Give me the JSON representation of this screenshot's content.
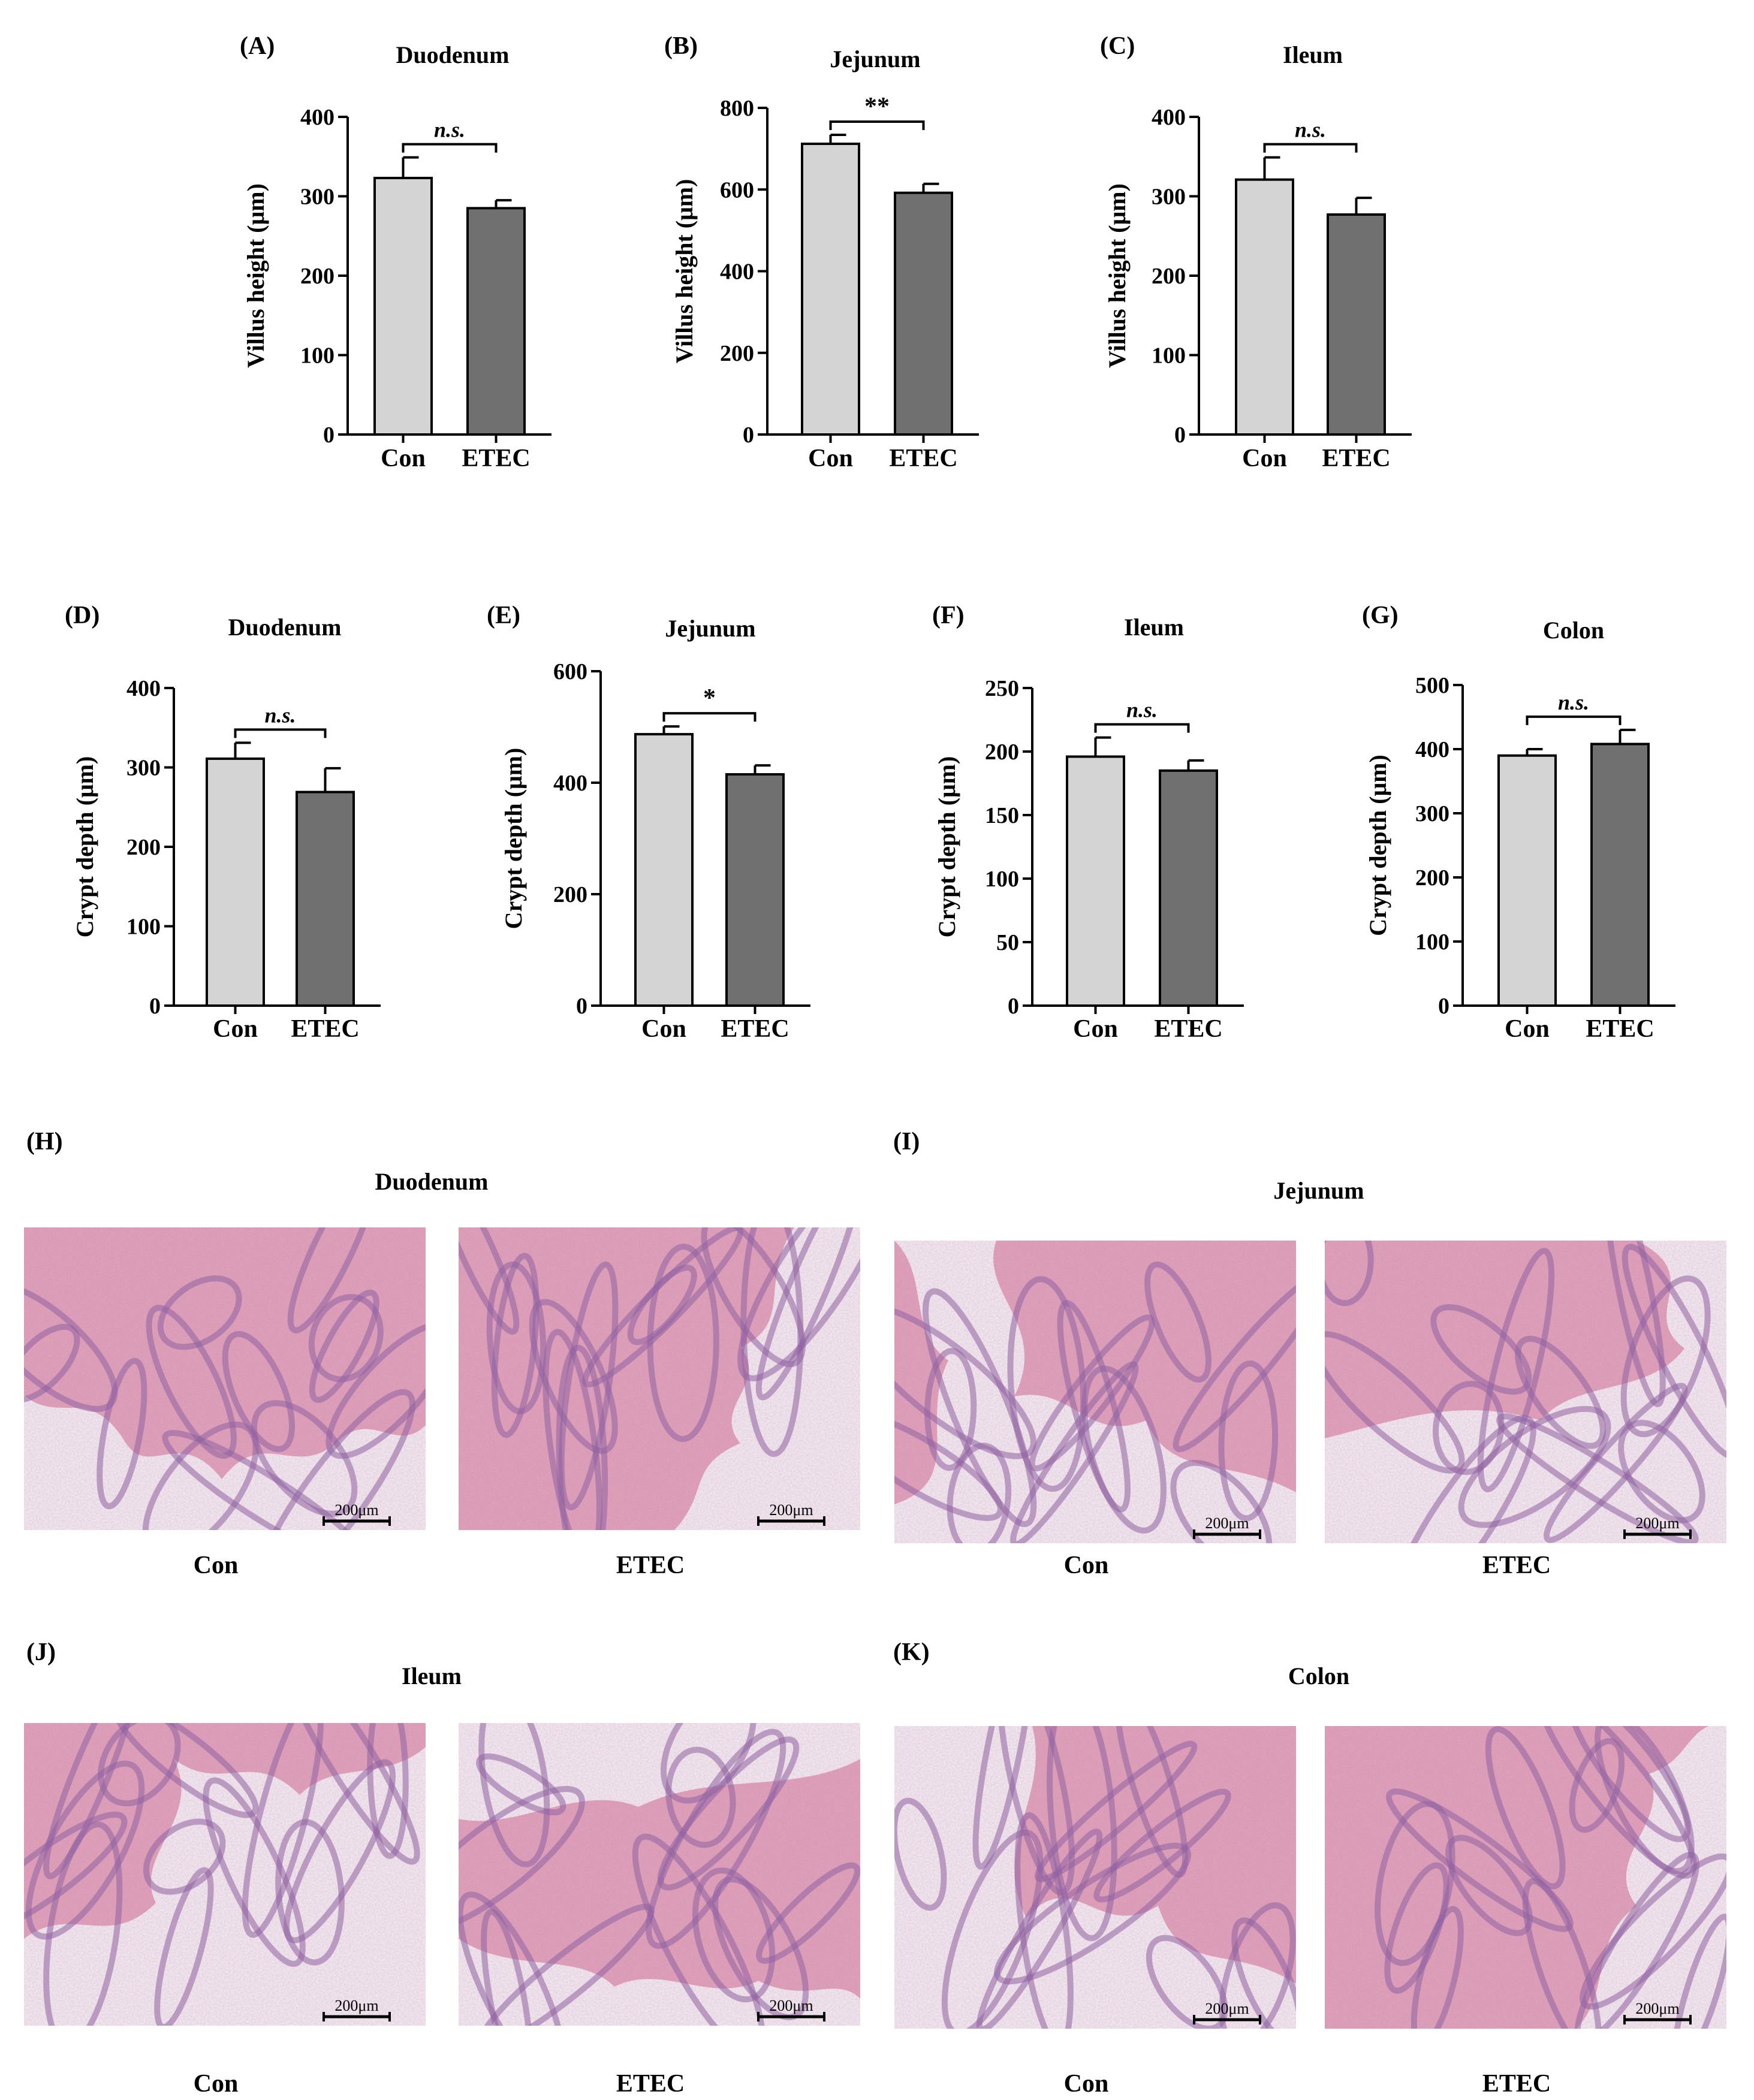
{
  "colors": {
    "con_bar": "#d4d4d4",
    "etec_bar": "#707070",
    "axis": "#000000",
    "tissue_pink": "#e3a2b8",
    "tissue_purple": "#8a5c9e",
    "tissue_background": "#f6eff2"
  },
  "chart_data": [
    {
      "panel": "(A)",
      "type": "bar",
      "title": "Duodenum",
      "ylabel": "Villus height (μm)",
      "categories": [
        "Con",
        "ETEC"
      ],
      "values": [
        323,
        285
      ],
      "errors": [
        26,
        10
      ],
      "ylim": [
        0,
        400
      ],
      "yticks": [
        0,
        100,
        200,
        300,
        400
      ],
      "significance": "n.s.",
      "sig_italic": true
    },
    {
      "panel": "(B)",
      "type": "bar",
      "title": "Jejunum",
      "ylabel": "Villus height (μm)",
      "categories": [
        "Con",
        "ETEC"
      ],
      "values": [
        712,
        592
      ],
      "errors": [
        22,
        22
      ],
      "ylim": [
        0,
        800
      ],
      "yticks": [
        0,
        200,
        400,
        600,
        800
      ],
      "significance": "**",
      "sig_italic": false
    },
    {
      "panel": "(C)",
      "type": "bar",
      "title": "Ileum",
      "ylabel": "Villus height (μm)",
      "categories": [
        "Con",
        "ETEC"
      ],
      "values": [
        321,
        277
      ],
      "errors": [
        28,
        21
      ],
      "ylim": [
        0,
        400
      ],
      "yticks": [
        0,
        100,
        200,
        300,
        400
      ],
      "significance": "n.s.",
      "sig_italic": true
    },
    {
      "panel": "(D)",
      "type": "bar",
      "title": "Duodenum",
      "ylabel": "Crypt depth (μm)",
      "categories": [
        "Con",
        "ETEC"
      ],
      "values": [
        311,
        269
      ],
      "errors": [
        20,
        30
      ],
      "ylim": [
        0,
        400
      ],
      "yticks": [
        0,
        100,
        200,
        300,
        400
      ],
      "significance": "n.s.",
      "sig_italic": true
    },
    {
      "panel": "(E)",
      "type": "bar",
      "title": "Jejunum",
      "ylabel": "Crypt depth (μm)",
      "categories": [
        "Con",
        "ETEC"
      ],
      "values": [
        487,
        415
      ],
      "errors": [
        14,
        16
      ],
      "ylim": [
        0,
        600
      ],
      "yticks": [
        0,
        200,
        400,
        600
      ],
      "significance": "*",
      "sig_italic": false
    },
    {
      "panel": "(F)",
      "type": "bar",
      "title": "Ileum",
      "ylabel": "Crypt depth (μm)",
      "categories": [
        "Con",
        "ETEC"
      ],
      "values": [
        196,
        185
      ],
      "errors": [
        15,
        8
      ],
      "ylim": [
        0,
        250
      ],
      "yticks": [
        0,
        50,
        100,
        150,
        200,
        250
      ],
      "significance": "n.s.",
      "sig_italic": true
    },
    {
      "panel": "(G)",
      "type": "bar",
      "title": "Colon",
      "ylabel": "Crypt depth (μm)",
      "categories": [
        "Con",
        "ETEC"
      ],
      "values": [
        390,
        408
      ],
      "errors": [
        10,
        22
      ],
      "ylim": [
        0,
        500
      ],
      "yticks": [
        0,
        100,
        200,
        300,
        400,
        500
      ],
      "significance": "n.s.",
      "sig_italic": true
    }
  ],
  "micrographs": [
    {
      "panel": "(H)",
      "title": "Duodenum",
      "images": [
        {
          "caption": "Con",
          "scale_bar": "200μm"
        },
        {
          "caption": "ETEC",
          "scale_bar": "200μm"
        }
      ]
    },
    {
      "panel": "(I)",
      "title": "Jejunum",
      "images": [
        {
          "caption": "Con",
          "scale_bar": "200μm"
        },
        {
          "caption": "ETEC",
          "scale_bar": "200μm"
        }
      ]
    },
    {
      "panel": "(J)",
      "title": "Ileum",
      "images": [
        {
          "caption": "Con",
          "scale_bar": "200μm"
        },
        {
          "caption": "ETEC",
          "scale_bar": "200μm"
        }
      ]
    },
    {
      "panel": "(K)",
      "title": "Colon",
      "images": [
        {
          "caption": "Con",
          "scale_bar": "200μm"
        },
        {
          "caption": "ETEC",
          "scale_bar": "200μm"
        }
      ]
    }
  ]
}
